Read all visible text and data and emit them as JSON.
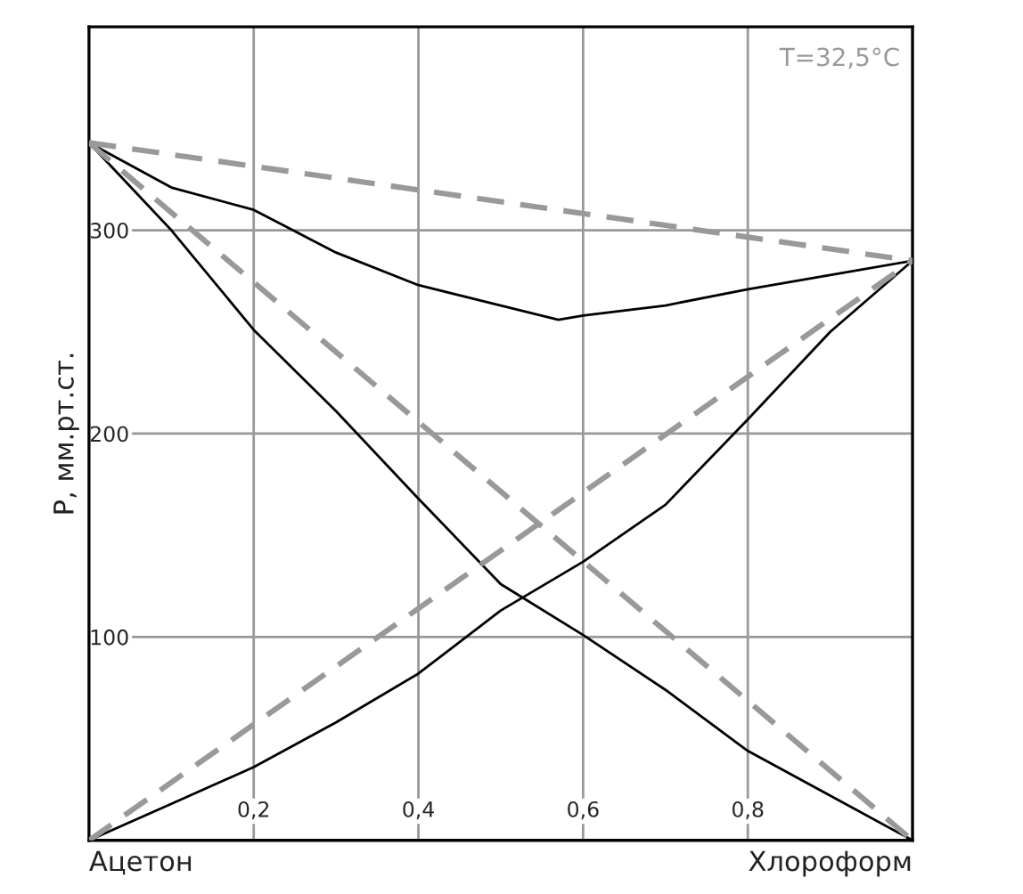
{
  "chart_data": {
    "type": "line",
    "ylabel": "P, мм.рт.ст.",
    "annotations": [
      "T=32,5°C",
      {
        "text": "Ацетон",
        "x": 0,
        "y": 0
      },
      {
        "text": "Хлороформ",
        "x": 1,
        "y": 0
      }
    ],
    "xlim": [
      0,
      1
    ],
    "ylim": [
      0,
      400
    ],
    "xticks": [
      {
        "value": 0.2,
        "label": "0,2"
      },
      {
        "value": 0.4,
        "label": "0,4"
      },
      {
        "value": 0.6,
        "label": "0,6"
      },
      {
        "value": 0.8,
        "label": "0,8"
      }
    ],
    "yticks": [
      100,
      200,
      300
    ],
    "grid": true,
    "legend": false,
    "series": [
      {
        "color": "#000000",
        "line_style": "solid",
        "x": [
          0,
          0.1,
          0.2,
          0.3,
          0.4,
          0.5,
          0.57,
          0.6,
          0.7,
          0.8,
          0.9,
          1
        ],
        "values": [
          343,
          321,
          310,
          289,
          273,
          263,
          256,
          258,
          263,
          271,
          278,
          285
        ]
      },
      {
        "color": "#000000",
        "line_style": "solid",
        "x": [
          0,
          0.1,
          0.2,
          0.3,
          0.4,
          0.5,
          0.6,
          0.7,
          0.8,
          0.9,
          1
        ],
        "values": [
          343,
          300,
          251,
          211,
          168,
          126,
          101,
          74,
          44,
          22,
          0
        ]
      },
      {
        "color": "#000000",
        "line_style": "solid",
        "x": [
          0,
          0.1,
          0.2,
          0.3,
          0.4,
          0.5,
          0.6,
          0.7,
          0.8,
          0.9,
          1
        ],
        "values": [
          0,
          18,
          36,
          58,
          82,
          113,
          137,
          165,
          207,
          250,
          285
        ]
      },
      {
        "color": "#999999",
        "line_style": "dashed",
        "x": [
          0,
          1
        ],
        "values": [
          343,
          285
        ]
      },
      {
        "color": "#999999",
        "line_style": "dashed",
        "x": [
          0,
          1
        ],
        "values": [
          343,
          0
        ]
      },
      {
        "color": "#999999",
        "line_style": "dashed",
        "x": [
          0,
          1
        ],
        "values": [
          0,
          285
        ]
      }
    ]
  }
}
